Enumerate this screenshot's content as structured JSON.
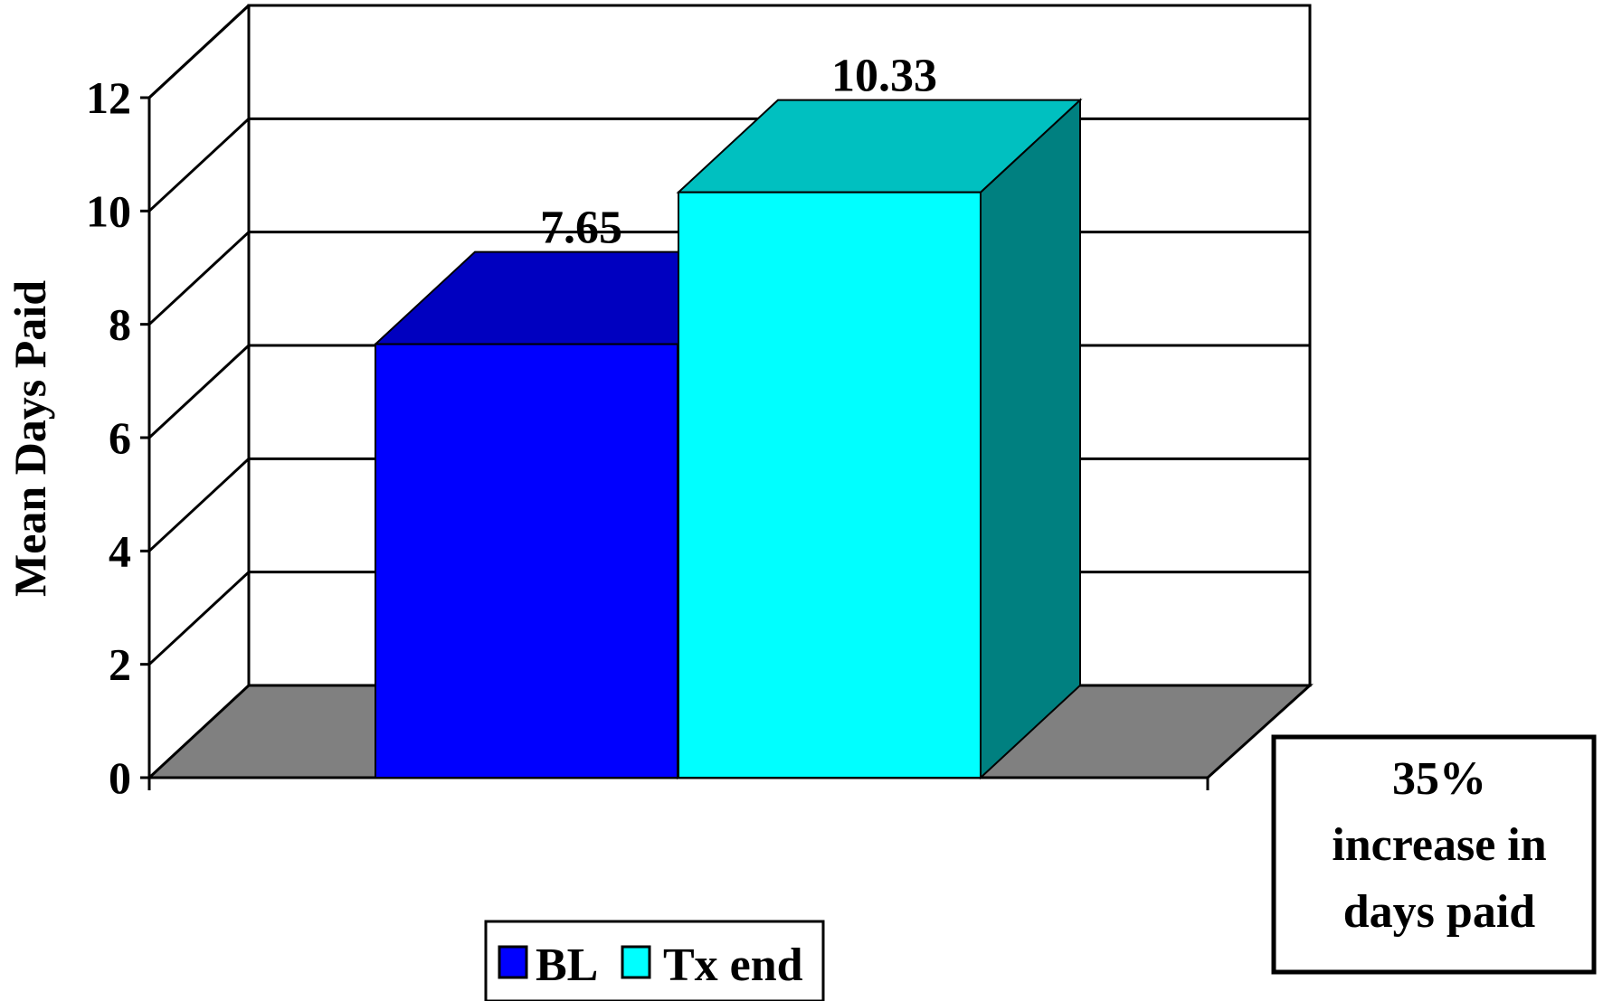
{
  "chart_data": {
    "type": "bar",
    "categories": [
      ""
    ],
    "series": [
      {
        "name": "BL",
        "values": [
          7.65
        ],
        "color": "#0000FF",
        "top_color": "#0000C0",
        "side_color": "#0000A0"
      },
      {
        "name": "Tx end",
        "values": [
          10.33
        ],
        "color": "#00FFFF",
        "top_color": "#00C0C0",
        "side_color": "#008080"
      }
    ],
    "data_labels": [
      "7.65",
      "10.33"
    ],
    "ylabel": "Mean Days Paid",
    "ylim": [
      0,
      12
    ],
    "yticks": [
      "0",
      "2",
      "4",
      "6",
      "8",
      "10",
      "12"
    ],
    "grid": true,
    "legend_position": "bottom",
    "annotation": {
      "lines": [
        "35%",
        "increase in",
        "days paid"
      ]
    }
  },
  "colors": {
    "floor": "#808080",
    "gridline": "#000000",
    "background": "#FFFFFF"
  }
}
